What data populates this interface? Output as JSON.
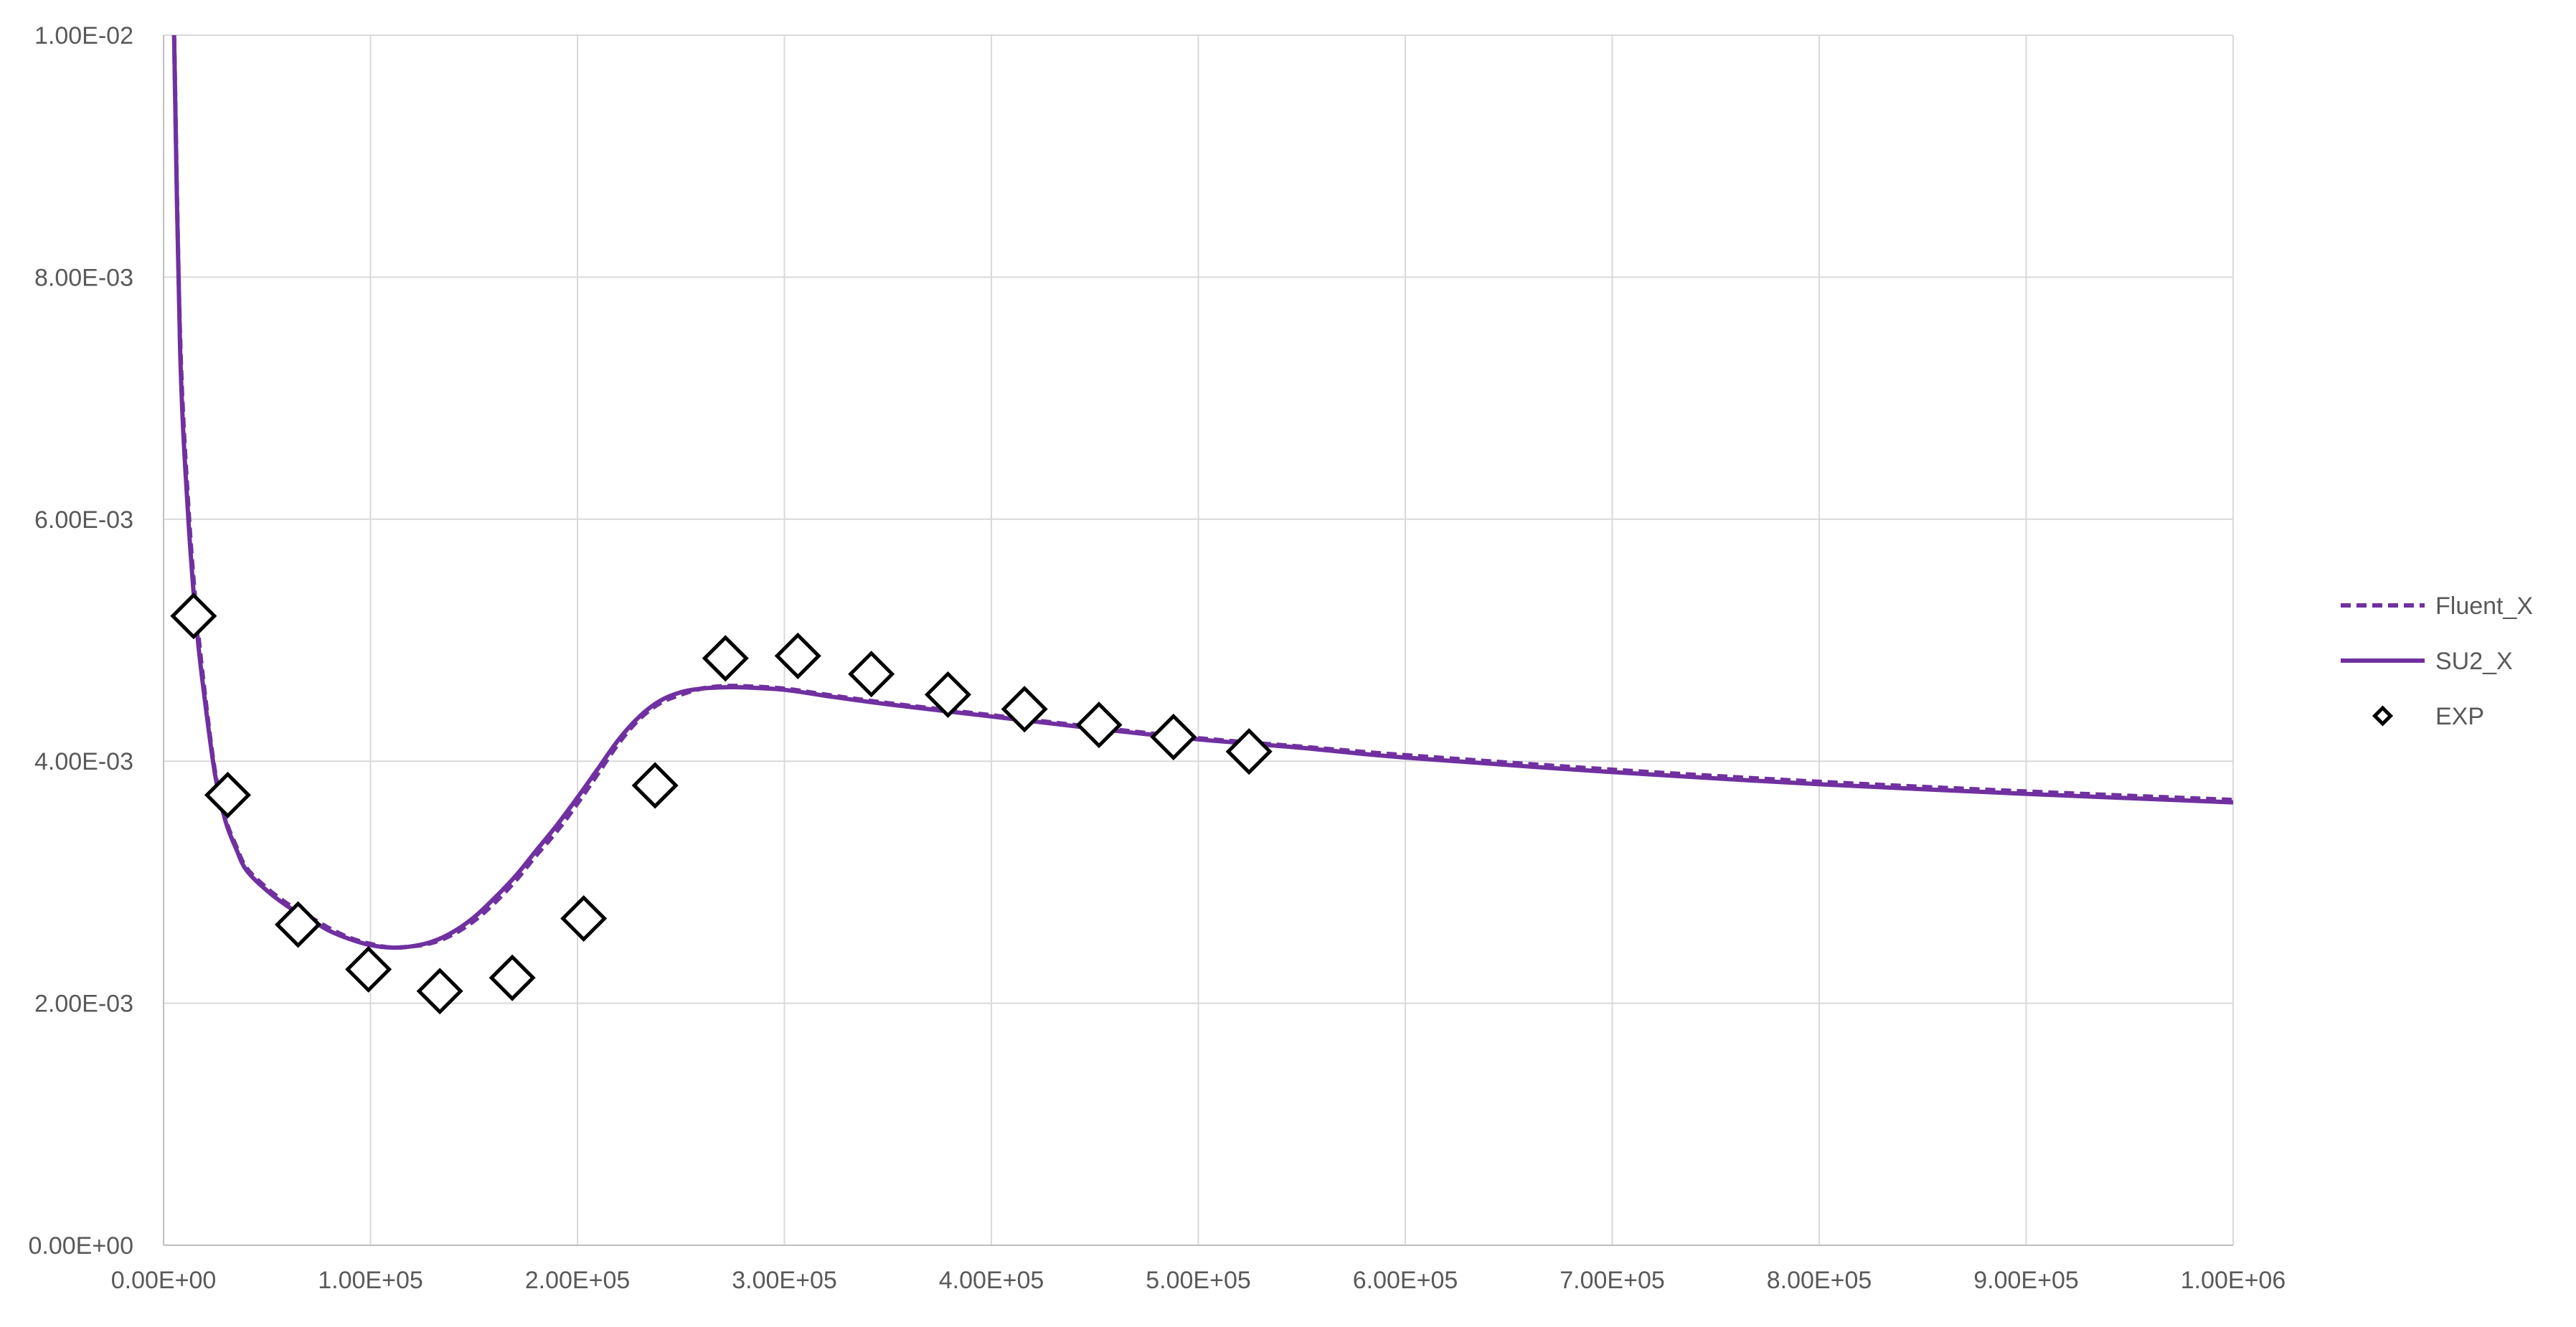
{
  "chart_data": {
    "type": "line",
    "title": "",
    "xlabel": "",
    "ylabel": "",
    "xlim": [
      0,
      1000000
    ],
    "ylim": [
      0,
      0.01
    ],
    "x_ticks": [
      0,
      100000,
      200000,
      300000,
      400000,
      500000,
      600000,
      700000,
      800000,
      900000,
      1000000
    ],
    "x_tick_labels": [
      "0.00E+00",
      "1.00E+05",
      "2.00E+05",
      "3.00E+05",
      "4.00E+05",
      "5.00E+05",
      "6.00E+05",
      "7.00E+05",
      "8.00E+05",
      "9.00E+05",
      "1.00E+06"
    ],
    "y_ticks": [
      0,
      0.002,
      0.004,
      0.006,
      0.008,
      0.01
    ],
    "y_tick_labels": [
      "0.00E+00",
      "2.00E-03",
      "4.00E-03",
      "6.00E-03",
      "8.00E-03",
      "1.00E-02"
    ],
    "grid": true,
    "legend_position": "right",
    "series": [
      {
        "name": "Fluent_X",
        "style": "dashed-line",
        "color": "#7030a0",
        "x": [
          5000,
          8000,
          12000,
          16000,
          20000,
          25000,
          30000,
          35000,
          40000,
          50000,
          60000,
          70000,
          80000,
          90000,
          100000,
          110000,
          120000,
          130000,
          140000,
          150000,
          160000,
          170000,
          180000,
          190000,
          200000,
          210000,
          220000,
          230000,
          240000,
          250000,
          260000,
          270000,
          280000,
          300000,
          320000,
          350000,
          400000,
          450000,
          500000,
          550000,
          600000,
          700000,
          800000,
          900000,
          1000000
        ],
        "y": [
          0.0101,
          0.0075,
          0.0061,
          0.0052,
          0.00455,
          0.0039,
          0.00352,
          0.0033,
          0.00312,
          0.00295,
          0.00282,
          0.00272,
          0.00262,
          0.00254,
          0.00249,
          0.00246,
          0.00247,
          0.0025,
          0.00257,
          0.00268,
          0.00283,
          0.00301,
          0.00322,
          0.00342,
          0.00365,
          0.0039,
          0.00415,
          0.00435,
          0.00448,
          0.00455,
          0.0046,
          0.00462,
          0.00462,
          0.0046,
          0.00455,
          0.00448,
          0.00438,
          0.00428,
          0.00419,
          0.00412,
          0.00405,
          0.00393,
          0.00383,
          0.00375,
          0.00368
        ]
      },
      {
        "name": "SU2_X",
        "style": "solid-line",
        "color": "#7030a0",
        "x": [
          5000,
          8000,
          12000,
          16000,
          20000,
          25000,
          30000,
          35000,
          40000,
          50000,
          60000,
          70000,
          80000,
          90000,
          100000,
          110000,
          120000,
          130000,
          140000,
          150000,
          160000,
          170000,
          180000,
          190000,
          200000,
          210000,
          220000,
          230000,
          240000,
          250000,
          260000,
          270000,
          280000,
          300000,
          320000,
          350000,
          400000,
          450000,
          500000,
          550000,
          600000,
          700000,
          800000,
          900000,
          1000000
        ],
        "y": [
          0.0101,
          0.0074,
          0.006,
          0.0051,
          0.0045,
          0.00388,
          0.0035,
          0.00328,
          0.0031,
          0.00293,
          0.0028,
          0.0027,
          0.0026,
          0.00253,
          0.00248,
          0.00246,
          0.00247,
          0.00251,
          0.00259,
          0.00271,
          0.00287,
          0.00305,
          0.00326,
          0.00347,
          0.0037,
          0.00394,
          0.00418,
          0.00437,
          0.0045,
          0.00457,
          0.0046,
          0.00461,
          0.00461,
          0.00459,
          0.00454,
          0.00447,
          0.00437,
          0.00427,
          0.00418,
          0.00411,
          0.00403,
          0.00391,
          0.00381,
          0.00373,
          0.00366
        ]
      },
      {
        "name": "EXP",
        "style": "markers-diamond",
        "color": "#000000",
        "x": [
          14500,
          31000,
          65000,
          99000,
          133500,
          168500,
          203000,
          237500,
          271500,
          306500,
          342000,
          379000,
          416000,
          452000,
          488000,
          524500
        ],
        "y": [
          0.0052,
          0.00372,
          0.00265,
          0.00228,
          0.0021,
          0.00221,
          0.0027,
          0.0038,
          0.00485,
          0.00487,
          0.00472,
          0.00455,
          0.00443,
          0.0043,
          0.0042,
          0.00408
        ]
      }
    ]
  }
}
